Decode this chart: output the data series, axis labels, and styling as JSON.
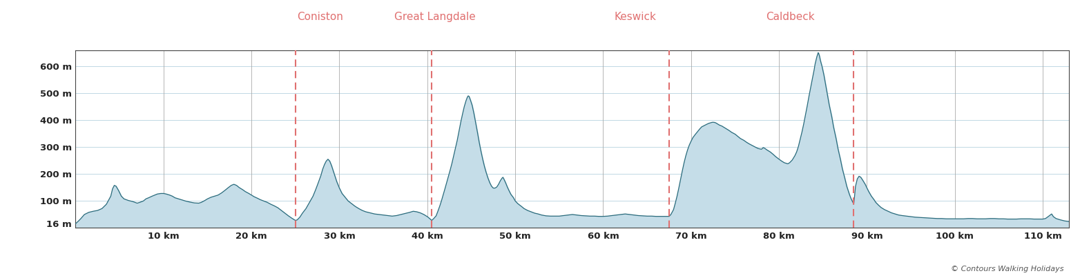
{
  "x_min": 0,
  "x_max": 113,
  "y_min": 0,
  "y_max": 660,
  "y_bottom": 16,
  "fill_color": "#c5dde8",
  "line_color": "#2a6b7c",
  "background_color": "#ffffff",
  "grid_color": "#c0d8e4",
  "waypoints": [
    {
      "name": "Coniston",
      "x": 25.0
    },
    {
      "name": "Great Langdale",
      "x": 40.5
    },
    {
      "name": "Keswick",
      "x": 67.5
    },
    {
      "name": "Caldbeck",
      "x": 88.5
    }
  ],
  "waypoint_color": "#e07070",
  "yticks": [
    16,
    100,
    200,
    300,
    400,
    500,
    600
  ],
  "ytick_labels": [
    "16 m",
    "100 m",
    "200 m",
    "300 m",
    "400 m",
    "500 m",
    "600 m"
  ],
  "xticks": [
    10,
    20,
    30,
    40,
    50,
    60,
    70,
    80,
    90,
    100,
    110
  ],
  "xtick_labels": [
    "10 km",
    "20 km",
    "30 km",
    "40 km",
    "50 km",
    "60 km",
    "70 km",
    "80 km",
    "90 km",
    "100 km",
    "110 km"
  ],
  "copyright_text": "© Contours Walking Holidays",
  "profile": [
    [
      0.0,
      16
    ],
    [
      0.3,
      25
    ],
    [
      0.6,
      35
    ],
    [
      1.0,
      50
    ],
    [
      1.5,
      58
    ],
    [
      2.0,
      62
    ],
    [
      2.5,
      65
    ],
    [
      3.0,
      72
    ],
    [
      3.5,
      88
    ],
    [
      4.0,
      118
    ],
    [
      4.2,
      145
    ],
    [
      4.4,
      158
    ],
    [
      4.6,
      155
    ],
    [
      4.9,
      138
    ],
    [
      5.2,
      118
    ],
    [
      5.5,
      108
    ],
    [
      6.0,
      102
    ],
    [
      6.5,
      98
    ],
    [
      7.0,
      92
    ],
    [
      7.3,
      95
    ],
    [
      7.7,
      100
    ],
    [
      8.0,
      108
    ],
    [
      8.3,
      112
    ],
    [
      8.7,
      118
    ],
    [
      9.0,
      122
    ],
    [
      9.3,
      126
    ],
    [
      9.7,
      128
    ],
    [
      10.0,
      128
    ],
    [
      10.3,
      126
    ],
    [
      10.7,
      122
    ],
    [
      11.0,
      118
    ],
    [
      11.3,
      112
    ],
    [
      11.7,
      108
    ],
    [
      12.0,
      105
    ],
    [
      12.5,
      100
    ],
    [
      13.0,
      96
    ],
    [
      13.5,
      93
    ],
    [
      14.0,
      92
    ],
    [
      14.3,
      95
    ],
    [
      14.7,
      102
    ],
    [
      15.0,
      108
    ],
    [
      15.4,
      114
    ],
    [
      15.8,
      118
    ],
    [
      16.2,
      122
    ],
    [
      16.6,
      130
    ],
    [
      17.0,
      140
    ],
    [
      17.3,
      148
    ],
    [
      17.7,
      158
    ],
    [
      18.0,
      162
    ],
    [
      18.3,
      158
    ],
    [
      18.6,
      150
    ],
    [
      19.0,
      142
    ],
    [
      19.3,
      135
    ],
    [
      19.7,
      128
    ],
    [
      20.0,
      122
    ],
    [
      20.3,
      116
    ],
    [
      20.7,
      110
    ],
    [
      21.0,
      105
    ],
    [
      21.4,
      100
    ],
    [
      21.8,
      95
    ],
    [
      22.2,
      88
    ],
    [
      22.6,
      82
    ],
    [
      23.0,
      75
    ],
    [
      23.4,
      65
    ],
    [
      23.8,
      55
    ],
    [
      24.2,
      45
    ],
    [
      24.6,
      36
    ],
    [
      25.0,
      28
    ],
    [
      25.2,
      30
    ],
    [
      25.5,
      40
    ],
    [
      25.8,
      55
    ],
    [
      26.2,
      72
    ],
    [
      26.6,
      95
    ],
    [
      27.0,
      118
    ],
    [
      27.3,
      142
    ],
    [
      27.6,
      168
    ],
    [
      27.9,
      195
    ],
    [
      28.1,
      218
    ],
    [
      28.3,
      235
    ],
    [
      28.5,
      248
    ],
    [
      28.7,
      255
    ],
    [
      28.9,
      248
    ],
    [
      29.1,
      232
    ],
    [
      29.3,
      212
    ],
    [
      29.5,
      192
    ],
    [
      29.7,
      172
    ],
    [
      30.0,
      148
    ],
    [
      30.3,
      128
    ],
    [
      30.7,
      112
    ],
    [
      31.0,
      100
    ],
    [
      31.4,
      90
    ],
    [
      31.8,
      80
    ],
    [
      32.2,
      72
    ],
    [
      32.6,
      65
    ],
    [
      33.0,
      60
    ],
    [
      33.5,
      56
    ],
    [
      34.0,
      52
    ],
    [
      34.5,
      50
    ],
    [
      35.0,
      48
    ],
    [
      35.5,
      46
    ],
    [
      36.0,
      44
    ],
    [
      36.5,
      46
    ],
    [
      37.0,
      50
    ],
    [
      37.5,
      54
    ],
    [
      38.0,
      58
    ],
    [
      38.4,
      62
    ],
    [
      38.8,
      60
    ],
    [
      39.2,
      56
    ],
    [
      39.6,
      50
    ],
    [
      40.0,
      42
    ],
    [
      40.3,
      34
    ],
    [
      40.5,
      28
    ],
    [
      40.7,
      34
    ],
    [
      41.0,
      45
    ],
    [
      41.2,
      62
    ],
    [
      41.4,
      80
    ],
    [
      41.6,
      100
    ],
    [
      41.8,
      122
    ],
    [
      42.0,
      145
    ],
    [
      42.2,
      168
    ],
    [
      42.4,
      192
    ],
    [
      42.6,
      215
    ],
    [
      42.8,
      240
    ],
    [
      43.0,
      268
    ],
    [
      43.2,
      295
    ],
    [
      43.4,
      325
    ],
    [
      43.6,
      358
    ],
    [
      43.8,
      392
    ],
    [
      44.0,
      422
    ],
    [
      44.2,
      450
    ],
    [
      44.4,
      472
    ],
    [
      44.55,
      485
    ],
    [
      44.65,
      490
    ],
    [
      44.75,
      488
    ],
    [
      44.9,
      475
    ],
    [
      45.1,
      455
    ],
    [
      45.3,
      425
    ],
    [
      45.5,
      390
    ],
    [
      45.7,
      355
    ],
    [
      45.9,
      318
    ],
    [
      46.1,
      285
    ],
    [
      46.3,
      255
    ],
    [
      46.5,
      228
    ],
    [
      46.7,
      205
    ],
    [
      46.9,
      185
    ],
    [
      47.1,
      168
    ],
    [
      47.3,
      155
    ],
    [
      47.5,
      148
    ],
    [
      47.7,
      148
    ],
    [
      47.9,
      152
    ],
    [
      48.1,
      162
    ],
    [
      48.3,
      175
    ],
    [
      48.5,
      185
    ],
    [
      48.6,
      188
    ],
    [
      48.7,
      182
    ],
    [
      48.9,
      168
    ],
    [
      49.1,
      152
    ],
    [
      49.3,
      138
    ],
    [
      49.5,
      125
    ],
    [
      49.8,
      112
    ],
    [
      50.0,
      100
    ],
    [
      50.3,
      90
    ],
    [
      50.7,
      80
    ],
    [
      51.0,
      72
    ],
    [
      51.4,
      65
    ],
    [
      51.8,
      60
    ],
    [
      52.2,
      55
    ],
    [
      52.6,
      52
    ],
    [
      53.0,
      48
    ],
    [
      53.5,
      45
    ],
    [
      54.0,
      44
    ],
    [
      54.5,
      44
    ],
    [
      55.0,
      44
    ],
    [
      55.5,
      46
    ],
    [
      56.0,
      48
    ],
    [
      56.5,
      50
    ],
    [
      57.0,
      48
    ],
    [
      57.5,
      46
    ],
    [
      58.0,
      45
    ],
    [
      58.5,
      44
    ],
    [
      59.0,
      44
    ],
    [
      59.5,
      43
    ],
    [
      60.0,
      43
    ],
    [
      60.5,
      44
    ],
    [
      61.0,
      46
    ],
    [
      61.5,
      48
    ],
    [
      62.0,
      50
    ],
    [
      62.5,
      52
    ],
    [
      63.0,
      50
    ],
    [
      63.5,
      48
    ],
    [
      64.0,
      46
    ],
    [
      64.5,
      45
    ],
    [
      65.0,
      44
    ],
    [
      65.5,
      44
    ],
    [
      66.0,
      43
    ],
    [
      66.5,
      43
    ],
    [
      67.0,
      43
    ],
    [
      67.2,
      43
    ],
    [
      67.5,
      43
    ],
    [
      67.7,
      50
    ],
    [
      68.0,
      68
    ],
    [
      68.2,
      92
    ],
    [
      68.4,
      118
    ],
    [
      68.6,
      148
    ],
    [
      68.8,
      180
    ],
    [
      69.0,
      212
    ],
    [
      69.2,
      242
    ],
    [
      69.4,
      268
    ],
    [
      69.6,
      290
    ],
    [
      69.8,
      308
    ],
    [
      70.0,
      322
    ],
    [
      70.2,
      335
    ],
    [
      70.5,
      348
    ],
    [
      70.8,
      360
    ],
    [
      71.0,
      368
    ],
    [
      71.2,
      375
    ],
    [
      71.5,
      380
    ],
    [
      71.8,
      385
    ],
    [
      72.0,
      388
    ],
    [
      72.2,
      390
    ],
    [
      72.4,
      392
    ],
    [
      72.6,
      392
    ],
    [
      72.8,
      390
    ],
    [
      73.0,
      386
    ],
    [
      73.2,
      382
    ],
    [
      73.5,
      378
    ],
    [
      73.8,
      372
    ],
    [
      74.0,
      368
    ],
    [
      74.3,
      362
    ],
    [
      74.6,
      355
    ],
    [
      75.0,
      348
    ],
    [
      75.3,
      340
    ],
    [
      75.6,
      332
    ],
    [
      76.0,
      325
    ],
    [
      76.3,
      318
    ],
    [
      76.6,
      312
    ],
    [
      77.0,
      305
    ],
    [
      77.3,
      300
    ],
    [
      77.6,
      295
    ],
    [
      78.0,
      292
    ],
    [
      78.2,
      298
    ],
    [
      78.4,
      295
    ],
    [
      78.6,
      290
    ],
    [
      79.0,
      282
    ],
    [
      79.3,
      274
    ],
    [
      79.6,
      265
    ],
    [
      80.0,
      255
    ],
    [
      80.3,
      248
    ],
    [
      80.6,
      242
    ],
    [
      81.0,
      238
    ],
    [
      81.2,
      242
    ],
    [
      81.5,
      252
    ],
    [
      81.8,
      268
    ],
    [
      82.0,
      282
    ],
    [
      82.2,
      302
    ],
    [
      82.4,
      328
    ],
    [
      82.6,
      355
    ],
    [
      82.8,
      385
    ],
    [
      83.0,
      418
    ],
    [
      83.2,
      452
    ],
    [
      83.4,
      488
    ],
    [
      83.6,
      522
    ],
    [
      83.8,
      555
    ],
    [
      84.0,
      588
    ],
    [
      84.1,
      608
    ],
    [
      84.2,
      622
    ],
    [
      84.3,
      635
    ],
    [
      84.4,
      645
    ],
    [
      84.45,
      650
    ],
    [
      84.5,
      648
    ],
    [
      84.6,
      638
    ],
    [
      84.7,
      622
    ],
    [
      84.9,
      598
    ],
    [
      85.1,
      568
    ],
    [
      85.3,
      532
    ],
    [
      85.5,
      495
    ],
    [
      85.7,
      458
    ],
    [
      86.0,
      412
    ],
    [
      86.2,
      375
    ],
    [
      86.5,
      330
    ],
    [
      86.7,
      295
    ],
    [
      87.0,
      252
    ],
    [
      87.2,
      220
    ],
    [
      87.5,
      182
    ],
    [
      87.7,
      155
    ],
    [
      88.0,
      125
    ],
    [
      88.2,
      108
    ],
    [
      88.4,
      95
    ],
    [
      88.5,
      88
    ],
    [
      88.7,
      155
    ],
    [
      88.9,
      182
    ],
    [
      89.1,
      192
    ],
    [
      89.3,
      188
    ],
    [
      89.5,
      178
    ],
    [
      89.8,
      162
    ],
    [
      90.0,
      148
    ],
    [
      90.2,
      135
    ],
    [
      90.5,
      118
    ],
    [
      90.8,
      105
    ],
    [
      91.0,
      95
    ],
    [
      91.3,
      85
    ],
    [
      91.6,
      76
    ],
    [
      92.0,
      68
    ],
    [
      92.4,
      62
    ],
    [
      92.8,
      56
    ],
    [
      93.2,
      52
    ],
    [
      93.6,
      48
    ],
    [
      94.0,
      46
    ],
    [
      94.5,
      44
    ],
    [
      95.0,
      42
    ],
    [
      95.5,
      40
    ],
    [
      96.0,
      39
    ],
    [
      96.5,
      38
    ],
    [
      97.0,
      37
    ],
    [
      97.5,
      36
    ],
    [
      98.0,
      35
    ],
    [
      98.5,
      35
    ],
    [
      99.0,
      34
    ],
    [
      99.5,
      34
    ],
    [
      100.0,
      34
    ],
    [
      100.5,
      34
    ],
    [
      101.0,
      34
    ],
    [
      101.5,
      35
    ],
    [
      102.0,
      35
    ],
    [
      102.5,
      34
    ],
    [
      103.0,
      34
    ],
    [
      103.5,
      34
    ],
    [
      104.0,
      35
    ],
    [
      104.5,
      35
    ],
    [
      105.0,
      34
    ],
    [
      105.5,
      34
    ],
    [
      106.0,
      33
    ],
    [
      106.5,
      33
    ],
    [
      107.0,
      33
    ],
    [
      107.5,
      34
    ],
    [
      108.0,
      34
    ],
    [
      108.5,
      34
    ],
    [
      109.0,
      33
    ],
    [
      109.5,
      33
    ],
    [
      110.0,
      33
    ],
    [
      110.3,
      35
    ],
    [
      110.6,
      42
    ],
    [
      111.0,
      52
    ],
    [
      111.2,
      42
    ],
    [
      111.5,
      35
    ],
    [
      112.0,
      30
    ],
    [
      112.5,
      26
    ],
    [
      113.0,
      24
    ]
  ]
}
